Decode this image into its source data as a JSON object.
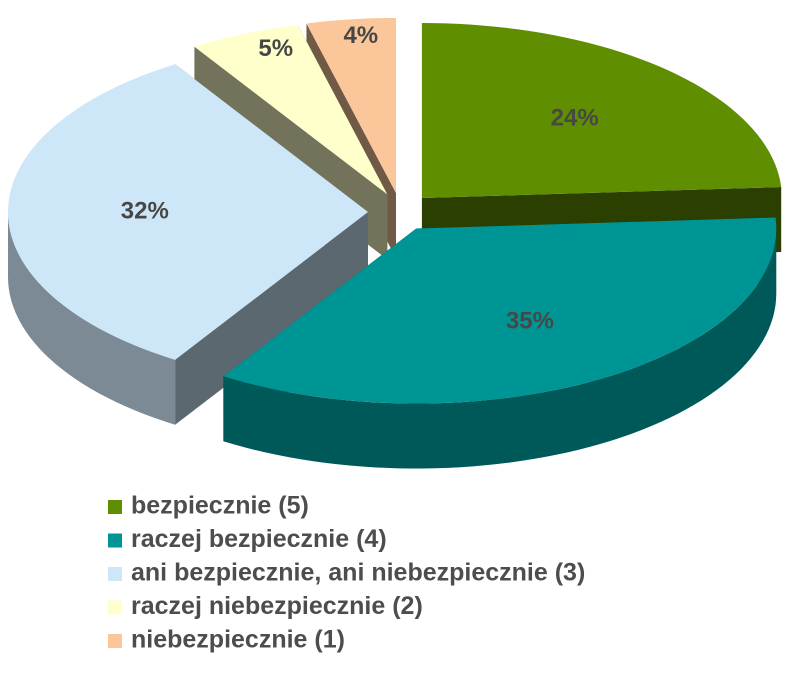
{
  "chart_data": {
    "type": "pie",
    "categories": [
      "bezpiecznie (5)",
      "raczej bezpiecznie (4)",
      "ani bezpiecznie, ani niebezpiecznie (3)",
      "raczej niebezpiecznie (2)",
      "niebezpiecznie (1)"
    ],
    "values": [
      24,
      35,
      32,
      5,
      4
    ],
    "value_labels": [
      "24%",
      "35%",
      "32%",
      "5%",
      "4%"
    ],
    "colors": [
      "#5f8f00",
      "#009595",
      "#cde6f8",
      "#ffffcc",
      "#fbc79a"
    ],
    "legend": "bottom"
  }
}
